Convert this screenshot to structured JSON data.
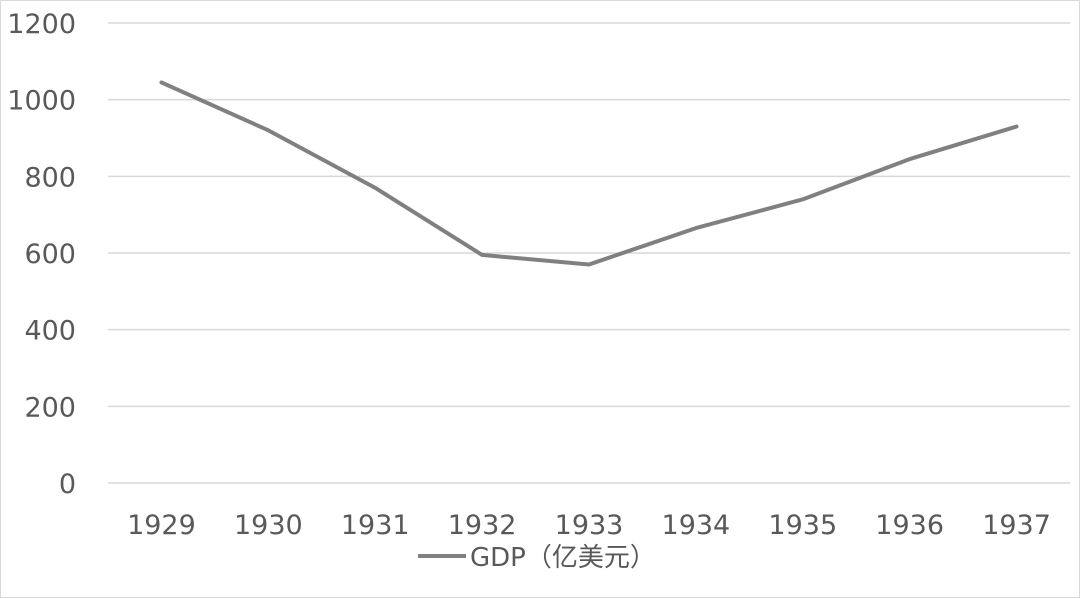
{
  "chart_data": {
    "type": "line",
    "categories": [
      "1929",
      "1930",
      "1931",
      "1932",
      "1933",
      "1934",
      "1935",
      "1936",
      "1937"
    ],
    "series": [
      {
        "name": "GDP（亿美元）",
        "values": [
          1045,
          920,
          770,
          595,
          570,
          665,
          740,
          845,
          930
        ],
        "color": "#808080"
      }
    ],
    "yticks": [
      "0",
      "200",
      "400",
      "600",
      "800",
      "1000",
      "1200"
    ],
    "ylim": [
      0,
      1200
    ],
    "grid": true,
    "legend_position": "bottom"
  }
}
